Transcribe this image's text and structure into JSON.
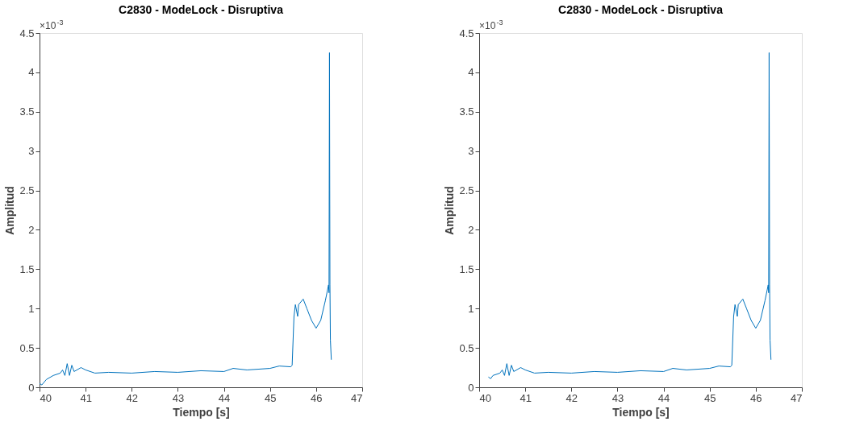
{
  "chart_data": [
    {
      "type": "line",
      "title": "C2830 - ModeLock - Disruptiva",
      "xlabel": "Tiempo [s]",
      "ylabel": "Amplitud",
      "annotations": [
        "×10$^{-3}$"
      ],
      "xlim": [
        40,
        47
      ],
      "xticks": [
        40,
        41,
        42,
        43,
        44,
        45,
        46,
        47
      ],
      "ylim": [
        0,
        4.5
      ],
      "yticks": [
        0,
        0.5,
        1,
        1.5,
        2,
        2.5,
        3,
        3.5,
        4,
        4.5
      ],
      "grid": false,
      "series": [
        {
          "color": "#0072bd",
          "x": [
            40.0,
            40.05,
            40.15,
            40.3,
            40.45,
            40.5,
            40.55,
            40.6,
            40.65,
            40.7,
            40.75,
            40.9,
            41.0,
            41.2,
            41.5,
            42.0,
            42.5,
            43.0,
            43.5,
            44.0,
            44.2,
            44.5,
            45.0,
            45.2,
            45.45,
            45.48,
            45.52,
            45.55,
            45.6,
            45.62,
            45.72,
            45.8,
            45.9,
            46.0,
            46.1,
            46.2,
            46.27,
            46.28,
            46.29,
            46.3,
            46.31,
            46.33
          ],
          "values": [
            0.05,
            0.03,
            0.1,
            0.15,
            0.18,
            0.22,
            0.15,
            0.3,
            0.15,
            0.28,
            0.2,
            0.25,
            0.22,
            0.18,
            0.19,
            0.18,
            0.2,
            0.19,
            0.21,
            0.2,
            0.24,
            0.22,
            0.24,
            0.27,
            0.26,
            0.28,
            0.9,
            1.05,
            0.9,
            1.05,
            1.12,
            1.0,
            0.85,
            0.75,
            0.85,
            1.1,
            1.3,
            1.2,
            4.25,
            1.3,
            0.6,
            0.35
          ]
        }
      ]
    },
    {
      "type": "line",
      "title": "C2830 - ModeLock - Disruptiva",
      "xlabel": "Tiempo [s]",
      "ylabel": "Amplitud",
      "annotations": [
        "×10$^{-3}$"
      ],
      "xlim": [
        40,
        47
      ],
      "xticks": [
        40,
        41,
        42,
        43,
        44,
        45,
        46,
        47
      ],
      "ylim": [
        0,
        4.5
      ],
      "yticks": [
        0,
        0.5,
        1,
        1.5,
        2,
        2.5,
        3,
        3.5,
        4,
        4.5
      ],
      "grid": false,
      "series": [
        {
          "color": "#0072bd",
          "x": [
            40.2,
            40.25,
            40.3,
            40.45,
            40.5,
            40.55,
            40.6,
            40.65,
            40.7,
            40.75,
            40.9,
            41.0,
            41.2,
            41.5,
            42.0,
            42.5,
            43.0,
            43.5,
            44.0,
            44.2,
            44.5,
            45.0,
            45.2,
            45.45,
            45.48,
            45.52,
            45.55,
            45.6,
            45.62,
            45.72,
            45.8,
            45.9,
            46.0,
            46.1,
            46.2,
            46.27,
            46.28,
            46.29,
            46.3,
            46.31,
            46.33
          ],
          "values": [
            0.13,
            0.11,
            0.15,
            0.18,
            0.22,
            0.15,
            0.3,
            0.15,
            0.28,
            0.2,
            0.25,
            0.22,
            0.18,
            0.19,
            0.18,
            0.2,
            0.19,
            0.21,
            0.2,
            0.24,
            0.22,
            0.24,
            0.27,
            0.26,
            0.28,
            0.9,
            1.05,
            0.9,
            1.05,
            1.12,
            1.0,
            0.85,
            0.75,
            0.85,
            1.1,
            1.3,
            1.2,
            4.25,
            1.3,
            0.6,
            0.35
          ]
        }
      ]
    }
  ]
}
